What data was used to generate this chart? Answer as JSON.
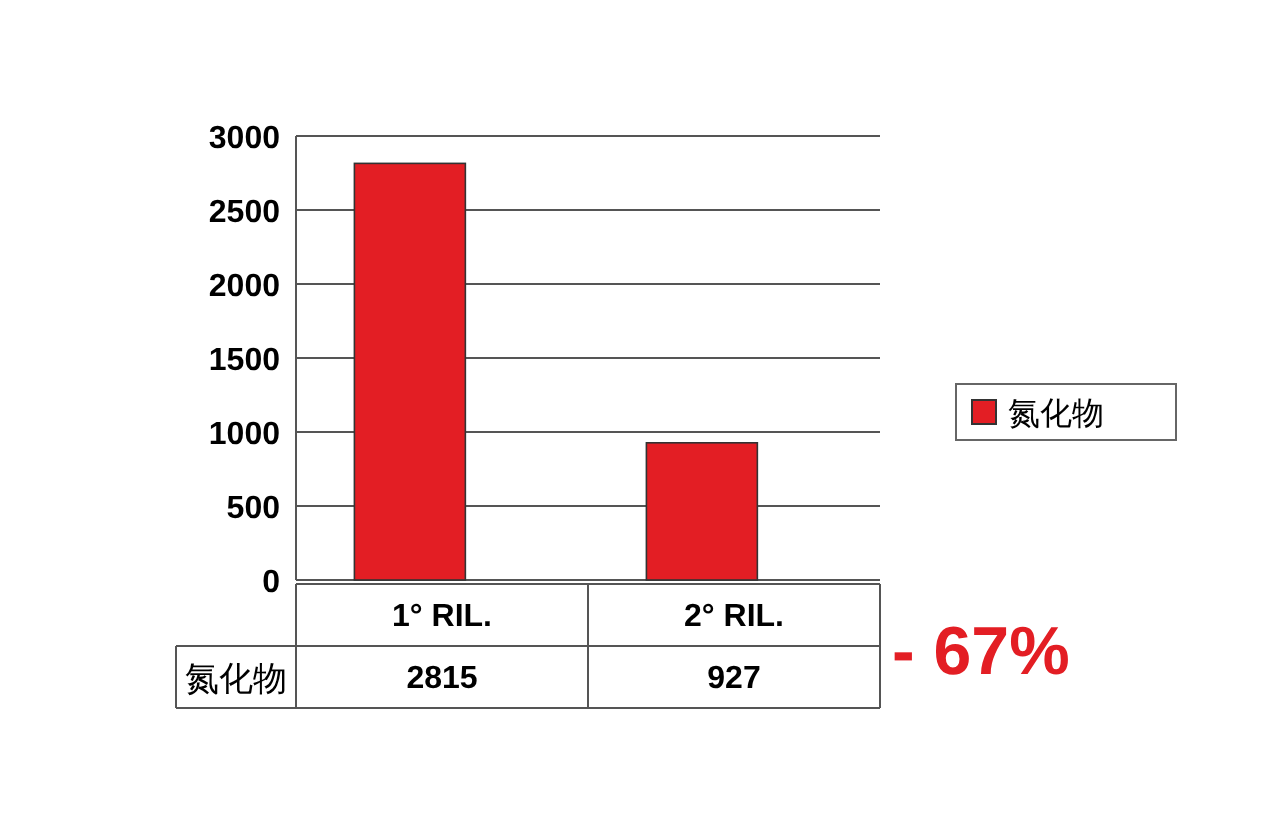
{
  "chart_data": {
    "type": "bar",
    "categories": [
      "1° RIL.",
      "2° RIL."
    ],
    "series": [
      {
        "name": "氮化物",
        "color": "#e31e24",
        "values": [
          2815,
          927
        ]
      }
    ],
    "ylim": [
      0,
      3000
    ],
    "yticks": [
      0,
      500,
      1000,
      1500,
      2000,
      2500,
      3000
    ],
    "grid": "y",
    "legend": "right",
    "data_labels": true,
    "annotations": [
      "- 67%"
    ]
  }
}
